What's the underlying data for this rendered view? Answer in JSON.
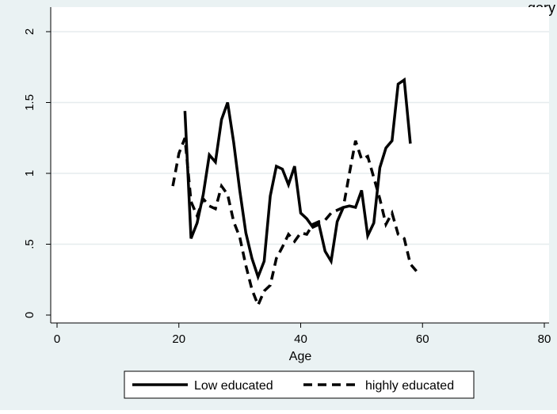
{
  "chart_data": {
    "type": "line",
    "title": "",
    "top_right_text": "gory",
    "xlabel": "Age",
    "ylabel": "",
    "xlim": [
      0,
      80
    ],
    "ylim": [
      0,
      2
    ],
    "x_ticks": [
      0,
      20,
      40,
      60,
      80
    ],
    "x_tick_labels": [
      "0",
      "20",
      "40",
      "60",
      "80"
    ],
    "y_ticks": [
      0,
      0.5,
      1,
      1.5,
      2
    ],
    "y_tick_labels": [
      "0",
      ".5",
      "1",
      "1.5",
      "2"
    ],
    "grid": "horizontal",
    "legend_position": "bottom",
    "series": [
      {
        "name": "Low educated",
        "style": "solid",
        "color": "#000000",
        "x": [
          21,
          22,
          23,
          24,
          25,
          26,
          27,
          28,
          29,
          30,
          31,
          32,
          33,
          34,
          35,
          36,
          37,
          38,
          39,
          40,
          41,
          42,
          43,
          44,
          45,
          46,
          47,
          48,
          49,
          50,
          51,
          52,
          53,
          54,
          55,
          56,
          57,
          58
        ],
        "y": [
          1.44,
          0.54,
          0.65,
          0.85,
          1.13,
          1.08,
          1.38,
          1.5,
          1.22,
          0.88,
          0.58,
          0.4,
          0.27,
          0.38,
          0.84,
          1.05,
          1.03,
          0.92,
          1.05,
          0.72,
          0.68,
          0.62,
          0.64,
          0.45,
          0.38,
          0.66,
          0.76,
          0.77,
          0.76,
          0.88,
          0.56,
          0.65,
          1.04,
          1.18,
          1.23,
          1.63,
          1.66,
          1.21
        ]
      },
      {
        "name": "highly educated",
        "style": "dashed",
        "color": "#000000",
        "x": [
          19,
          20,
          21,
          22,
          23,
          24,
          25,
          26,
          27,
          28,
          29,
          30,
          31,
          32,
          33,
          34,
          35,
          36,
          37,
          38,
          39,
          40,
          41,
          42,
          43,
          44,
          45,
          46,
          47,
          48,
          49,
          50,
          51,
          52,
          53,
          54,
          55,
          56,
          57,
          58,
          59
        ],
        "y": [
          0.91,
          1.14,
          1.25,
          0.8,
          0.7,
          0.82,
          0.77,
          0.75,
          0.91,
          0.85,
          0.66,
          0.55,
          0.35,
          0.18,
          0.07,
          0.17,
          0.21,
          0.4,
          0.48,
          0.57,
          0.52,
          0.58,
          0.57,
          0.64,
          0.66,
          0.67,
          0.72,
          0.74,
          0.76,
          1.0,
          1.23,
          1.1,
          1.12,
          0.97,
          0.82,
          0.64,
          0.72,
          0.57,
          0.54,
          0.36,
          0.31
        ]
      }
    ]
  }
}
